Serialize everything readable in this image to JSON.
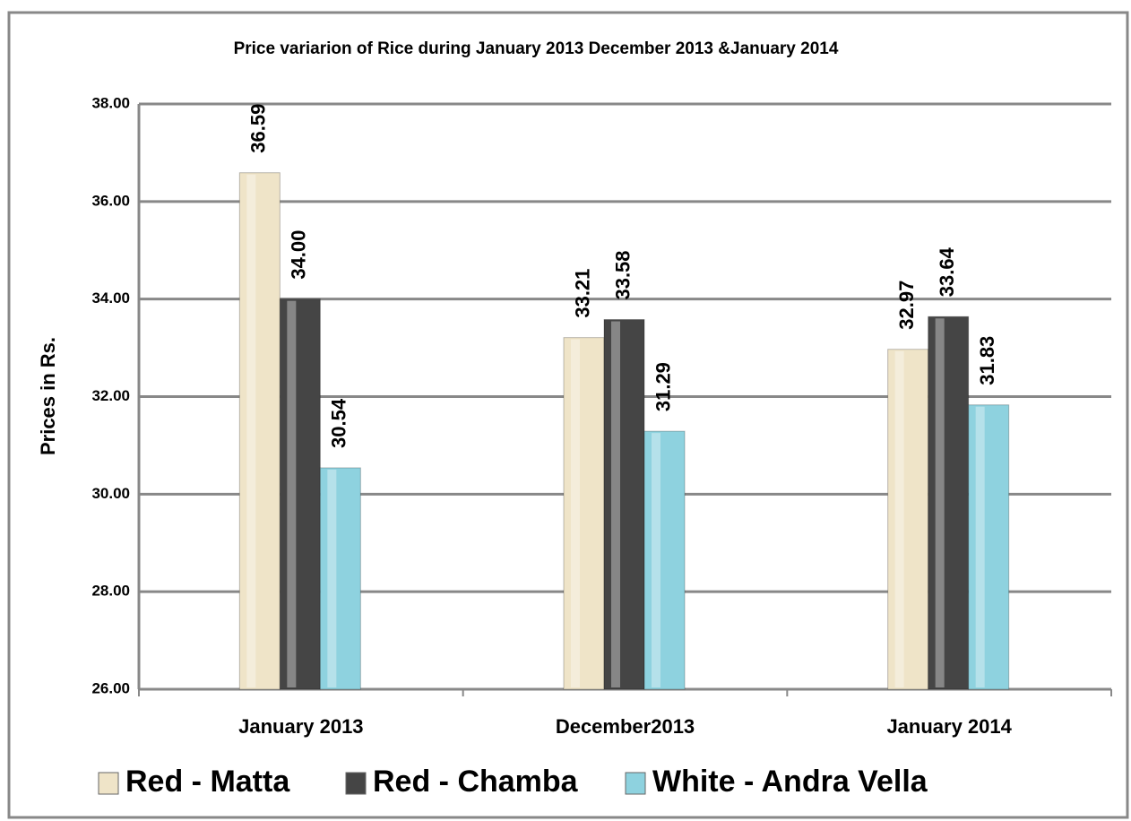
{
  "chart_data": {
    "type": "bar",
    "title": "Price variarion of Rice during January 2013 December 2013 &January 2014",
    "y_label": "Prices in Rs.",
    "categories": [
      "January 2013",
      "December2013",
      "January 2014"
    ],
    "series": [
      {
        "name": "Red - Matta",
        "color": "#efe4c8",
        "values": [
          36.59,
          33.21,
          32.97
        ],
        "value_labels": [
          "36.59",
          "33.21",
          "32.97"
        ]
      },
      {
        "name": "Red - Chamba",
        "color": "#454545",
        "values": [
          34.0,
          33.58,
          33.64
        ],
        "value_labels": [
          "34.00",
          "33.58",
          "33.64"
        ]
      },
      {
        "name": "White - Andra Vella",
        "color": "#8ed2df",
        "values": [
          30.54,
          31.29,
          31.83
        ],
        "value_labels": [
          "30.54",
          "31.29",
          "31.83"
        ]
      }
    ],
    "ylim": [
      26,
      38
    ],
    "yticks": [
      {
        "value": 26,
        "label": "26.00"
      },
      {
        "value": 28,
        "label": "28.00"
      },
      {
        "value": 30,
        "label": "30.00"
      },
      {
        "value": 32,
        "label": "32.00"
      },
      {
        "value": 34,
        "label": "34.00"
      },
      {
        "value": 36,
        "label": "36.00"
      },
      {
        "value": 38,
        "label": "38.00"
      }
    ],
    "grid": true,
    "legend": "bottom"
  }
}
